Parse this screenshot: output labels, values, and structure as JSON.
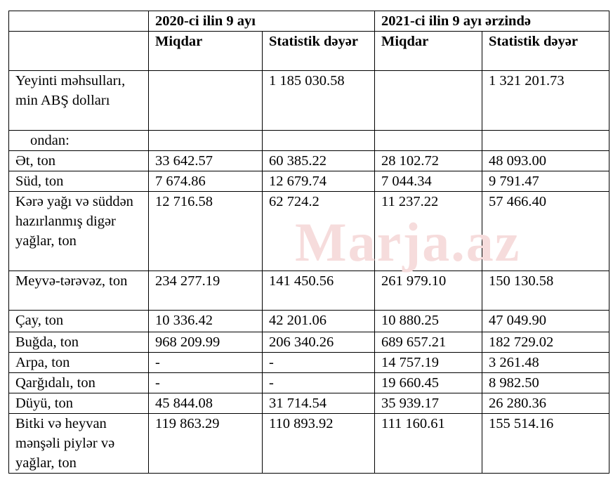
{
  "header": {
    "period_2020": "2020-ci ilin 9 ayı",
    "period_2021": "2021-ci ilin 9 ayı ərzində",
    "col_quantity_2020": "Miqdar",
    "col_value_2020": "Statistik dəyər",
    "col_quantity_2021": "Miqdar",
    "col_value_2021": "Statistik dəyər"
  },
  "rows": [
    {
      "label": "Yeyinti məhsulları, min ABŞ dolları",
      "q2020": "",
      "v2020": "1 185 030.58",
      "q2021": "",
      "v2021": "1 321 201.73"
    },
    {
      "label": "ondan:",
      "q2020": "",
      "v2020": "",
      "q2021": "",
      "v2021": ""
    },
    {
      "label": "Ət, ton",
      "q2020": "33 642.57",
      "v2020": "60 385.22",
      "q2021": "28 102.72",
      "v2021": "48 093.00"
    },
    {
      "label": "Süd, ton",
      "q2020": "7 674.86",
      "v2020": "12 679.74",
      "q2021": "7 044.34",
      "v2021": "9 791.47"
    },
    {
      "label": "Kərə yağı və süddən hazırlanmış digər yağlar, ton",
      "q2020": "12 716.58",
      "v2020": "62 724.2",
      "q2021": "11 237.22",
      "v2021": "57 466.40"
    },
    {
      "label": "Meyvə-tərəvəz, ton",
      "q2020": "234 277.19",
      "v2020": "141 450.56",
      "q2021": "261 979.10",
      "v2021": "150 130.58"
    },
    {
      "label": "Çay, ton",
      "q2020": "10 336.42",
      "v2020": "42 201.06",
      "q2021": "10 880.25",
      "v2021": "47 049.90"
    },
    {
      "label": "Buğda, ton",
      "q2020": "968 209.99",
      "v2020": "206 340.26",
      "q2021": "689 657.21",
      "v2021": "182 729.02"
    },
    {
      "label": "Arpa, ton",
      "q2020": "-",
      "v2020": "-",
      "q2021": "14 757.19",
      "v2021": "3 261.48"
    },
    {
      "label": "Qarğıdalı, ton",
      "q2020": "-",
      "v2020": "-",
      "q2021": "19 660.45",
      "v2021": "8 982.50"
    },
    {
      "label": "Düyü, ton",
      "q2020": "45 844.08",
      "v2020": "31 714.54",
      "q2021": "35 939.17",
      "v2021": "26 280.36"
    },
    {
      "label": "Bitki və heyvan mənşəli piylər və yağlar, ton",
      "q2020": "119 863.29",
      "v2020": "110 893.92",
      "q2021": "111 160.61",
      "v2021": "155 514.16"
    }
  ],
  "watermark": "Marja.az"
}
